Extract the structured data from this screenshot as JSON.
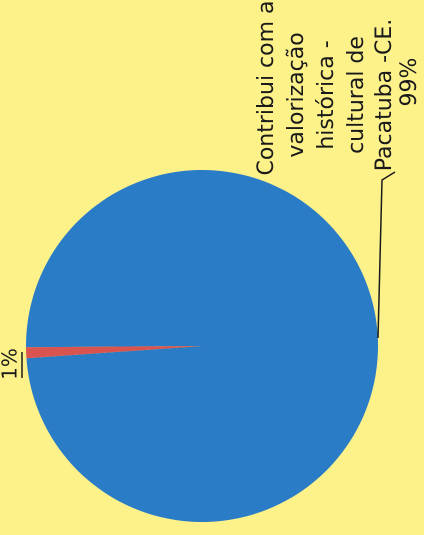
{
  "chart_data": {
    "type": "pie",
    "title": "",
    "slices": [
      {
        "label_lines": [
          "Contribui com a",
          "valorização",
          "histórica -",
          "cultural de",
          "Pacatuba -CE."
        ],
        "percent_label": "99%",
        "value": 99,
        "color": "#2a7cc7"
      },
      {
        "label_lines": [],
        "percent_label": "1%",
        "value": 1,
        "color": "#d9534f"
      }
    ],
    "rotation": "image rotated 90° clockwise",
    "legend": "none",
    "background": "#fdf18a"
  }
}
